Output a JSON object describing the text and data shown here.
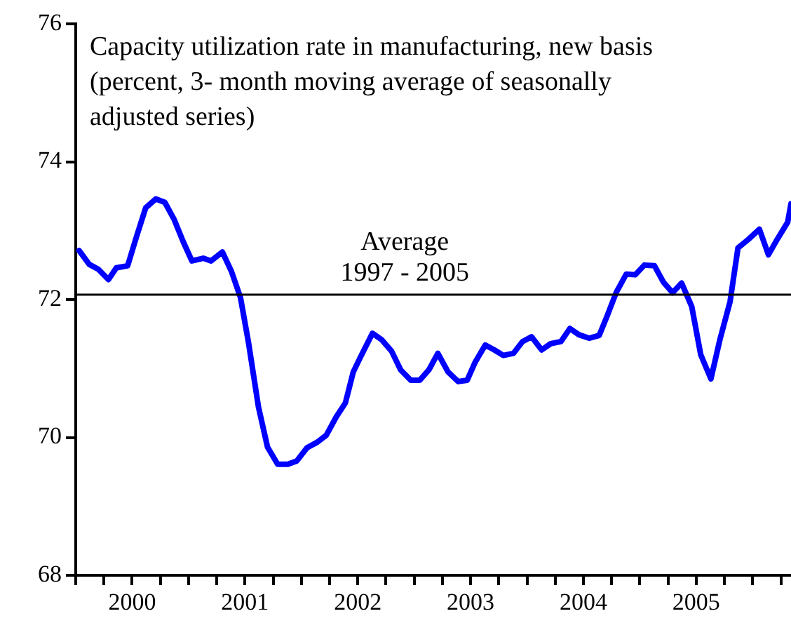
{
  "chart_data": {
    "type": "line",
    "title": "Capacity utilization rate in manufacturing, new basis (percent, 3- month moving average of seasonally adjusted series)",
    "x": [
      2000.03,
      2000.12,
      2000.2,
      2000.29,
      2000.36,
      2000.46,
      2000.54,
      2000.62,
      2000.71,
      2000.79,
      2000.87,
      2000.95,
      2001.03,
      2001.13,
      2001.2,
      2001.3,
      2001.38,
      2001.46,
      2001.53,
      2001.62,
      2001.7,
      2001.79,
      2001.88,
      2001.96,
      2002.05,
      2002.14,
      2002.22,
      2002.31,
      2002.39,
      2002.46,
      2002.54,
      2002.63,
      2002.71,
      2002.8,
      2002.88,
      2002.97,
      2003.05,
      2003.13,
      2003.21,
      2003.3,
      2003.39,
      2003.47,
      2003.54,
      2003.63,
      2003.71,
      2003.79,
      2003.88,
      2003.96,
      2004.04,
      2004.13,
      2004.21,
      2004.3,
      2004.38,
      2004.46,
      2004.55,
      2004.64,
      2004.71,
      2004.79,
      2004.88,
      2004.96,
      2005.04,
      2005.13,
      2005.21,
      2005.29,
      2005.37,
      2005.46,
      2005.54,
      2005.63,
      2005.71,
      2005.8,
      2005.87,
      2005.96,
      2006.06,
      2006.14,
      2006.22,
      2006.31,
      2006.34
    ],
    "series": [
      {
        "color": "#0000ff",
        "values": [
          72.71,
          72.51,
          72.44,
          72.29,
          72.46,
          72.49,
          72.92,
          73.33,
          73.46,
          73.41,
          73.17,
          72.85,
          72.56,
          72.6,
          72.56,
          72.69,
          72.41,
          72.03,
          71.39,
          70.44,
          69.86,
          69.61,
          69.61,
          69.66,
          69.85,
          69.93,
          70.03,
          70.3,
          70.5,
          70.95,
          71.22,
          71.51,
          71.42,
          71.25,
          70.98,
          70.83,
          70.83,
          70.98,
          71.22,
          70.95,
          70.81,
          70.83,
          71.09,
          71.34,
          71.27,
          71.19,
          71.22,
          71.39,
          71.46,
          71.27,
          71.36,
          71.39,
          71.58,
          71.49,
          71.44,
          71.48,
          71.76,
          72.1,
          72.37,
          72.36,
          72.5,
          72.49,
          72.25,
          72.1,
          72.24,
          71.9,
          71.2,
          70.85,
          71.42,
          71.97,
          72.75,
          72.87,
          73.02,
          72.65,
          72.88,
          73.12,
          73.39
        ]
      }
    ],
    "xlim": [
      2000,
      2006.34
    ],
    "xticks": [
      {
        "value": 2000,
        "label": null
      },
      {
        "value": 2000.25,
        "label": null
      },
      {
        "value": 2000.5,
        "label": "2000"
      },
      {
        "value": 2000.75,
        "label": null
      },
      {
        "value": 2001,
        "label": null
      },
      {
        "value": 2001.25,
        "label": null
      },
      {
        "value": 2001.5,
        "label": "2001"
      },
      {
        "value": 2001.75,
        "label": null
      },
      {
        "value": 2002,
        "label": null
      },
      {
        "value": 2002.25,
        "label": null
      },
      {
        "value": 2002.5,
        "label": "2002"
      },
      {
        "value": 2002.75,
        "label": null
      },
      {
        "value": 2003,
        "label": null
      },
      {
        "value": 2003.25,
        "label": null
      },
      {
        "value": 2003.5,
        "label": "2003"
      },
      {
        "value": 2003.75,
        "label": null
      },
      {
        "value": 2004,
        "label": null
      },
      {
        "value": 2004.25,
        "label": null
      },
      {
        "value": 2004.5,
        "label": "2004"
      },
      {
        "value": 2004.75,
        "label": null
      },
      {
        "value": 2005,
        "label": null
      },
      {
        "value": 2005.25,
        "label": null
      },
      {
        "value": 2005.5,
        "label": "2005"
      },
      {
        "value": 2005.75,
        "label": null
      },
      {
        "value": 2006,
        "label": null
      },
      {
        "value": 2006.25,
        "label": null
      }
    ],
    "ylim": [
      68,
      76
    ],
    "yticks": [
      68,
      70,
      72,
      74,
      76
    ],
    "ref_lines": [
      {
        "axis": "y",
        "value": 72.07,
        "label": "Average 1997 - 2005",
        "color": "#000000"
      }
    ],
    "grid": false,
    "legend": false,
    "marker": "none",
    "line_style": "solid"
  }
}
